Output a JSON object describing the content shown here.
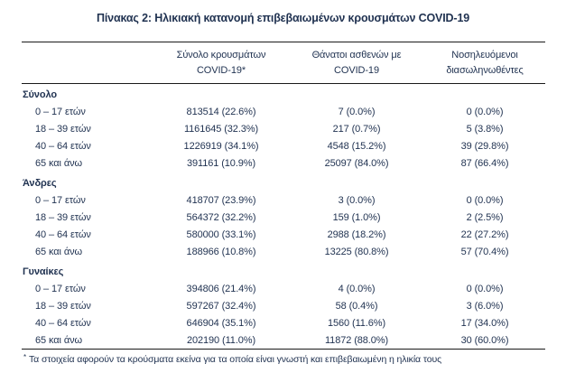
{
  "title": "Πίνακας 2: Ηλικιακή κατανομή επιβεβαιωμένων κρουσμάτων COVID-19",
  "colors": {
    "text": "#1f3150",
    "rule": "#1a1a1a",
    "background": "#ffffff"
  },
  "table": {
    "headers": [
      {
        "line1": "Σύνολο κρουσμάτων",
        "line2": "COVID-19*"
      },
      {
        "line1": "Θάνατοι ασθενών με",
        "line2": "COVID-19"
      },
      {
        "line1": "Νοσηλευόμενοι",
        "line2": "διασωληνωθέντες"
      }
    ],
    "sections": [
      {
        "label": "Σύνολο",
        "rows": [
          {
            "age": "0 – 17 ετών",
            "cases": "813514 (22.6%)",
            "deaths": "7 (0.0%)",
            "intubated": "0 (0.0%)"
          },
          {
            "age": "18 – 39 ετών",
            "cases": "1161645 (32.3%)",
            "deaths": "217 (0.7%)",
            "intubated": "5 (3.8%)"
          },
          {
            "age": "40 – 64 ετών",
            "cases": "1226919 (34.1%)",
            "deaths": "4548 (15.2%)",
            "intubated": "39 (29.8%)"
          },
          {
            "age": "65 και άνω",
            "cases": "391161 (10.9%)",
            "deaths": "25097 (84.0%)",
            "intubated": "87 (66.4%)"
          }
        ]
      },
      {
        "label": "Άνδρες",
        "rows": [
          {
            "age": "0 – 17 ετών",
            "cases": "418707 (23.9%)",
            "deaths": "3 (0.0%)",
            "intubated": "0 (0.0%)"
          },
          {
            "age": "18 – 39 ετών",
            "cases": "564372 (32.2%)",
            "deaths": "159 (1.0%)",
            "intubated": "2 (2.5%)"
          },
          {
            "age": "40 – 64 ετών",
            "cases": "580000 (33.1%)",
            "deaths": "2988 (18.2%)",
            "intubated": "22 (27.2%)"
          },
          {
            "age": "65 και άνω",
            "cases": "188966 (10.8%)",
            "deaths": "13225 (80.8%)",
            "intubated": "57 (70.4%)"
          }
        ]
      },
      {
        "label": "Γυναίκες",
        "rows": [
          {
            "age": "0 – 17 ετών",
            "cases": "394806 (21.4%)",
            "deaths": "4 (0.0%)",
            "intubated": "0 (0.0%)"
          },
          {
            "age": "18 – 39 ετών",
            "cases": "597267 (32.4%)",
            "deaths": "58 (0.4%)",
            "intubated": "3 (6.0%)"
          },
          {
            "age": "40 – 64 ετών",
            "cases": "646904 (35.1%)",
            "deaths": "1560 (11.6%)",
            "intubated": "17 (34.0%)"
          },
          {
            "age": "65 και άνω",
            "cases": "202190 (11.0%)",
            "deaths": "11872 (88.0%)",
            "intubated": "30 (60.0%)"
          }
        ]
      }
    ]
  },
  "footnote": {
    "marker": "*",
    "text": "Τα στοιχεία αφορούν τα κρούσματα εκείνα για τα οποία είναι γνωστή και επιβεβαιωμένη η ηλικία τους"
  }
}
